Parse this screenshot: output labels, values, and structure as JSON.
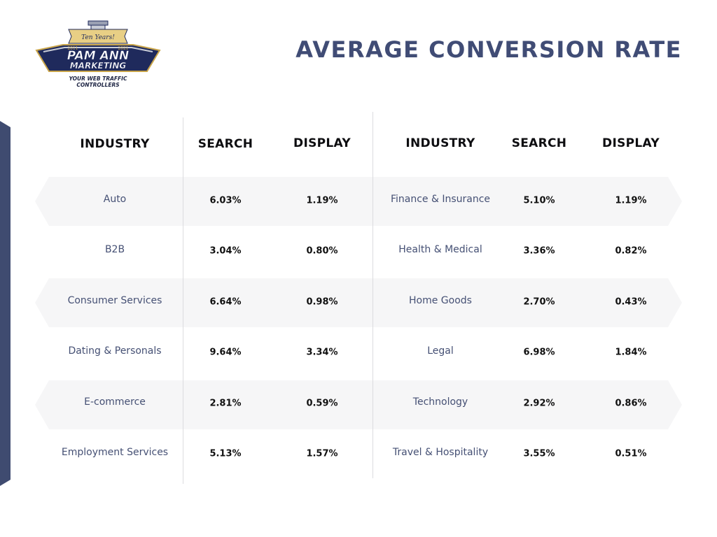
{
  "logo": {
    "banner_text": "Ten Years!",
    "year_start": "2011",
    "year_end": "2021",
    "line1": "PAM ANN",
    "line2": "MARKETING",
    "tagline_line1": "YOUR WEB TRAFFIC",
    "tagline_line2": "CONTROLLERS",
    "colors": {
      "navy": "#1f2a5c",
      "gold": "#c9a54a",
      "silver": "#c8ccd6"
    }
  },
  "title": "AVERAGE CONVERSION RATE",
  "colors": {
    "accent": "#3f4b70",
    "title": "#404c75",
    "industry_text": "#455074",
    "band": "#f6f6f7"
  },
  "headers": {
    "left": {
      "industry": "INDUSTRY",
      "search": "SEARCH",
      "display": "DISPLAY"
    },
    "right": {
      "industry": "INDUSTRY",
      "search": "SEARCH",
      "display": "DISPLAY"
    }
  },
  "rows": [
    {
      "left": {
        "industry": "Auto",
        "search": "6.03%",
        "display": "1.19%"
      },
      "right": {
        "industry": "Finance & Insurance",
        "search": "5.10%",
        "display": "1.19%"
      }
    },
    {
      "left": {
        "industry": "B2B",
        "search": "3.04%",
        "display": "0.80%"
      },
      "right": {
        "industry": "Health & Medical",
        "search": "3.36%",
        "display": "0.82%"
      }
    },
    {
      "left": {
        "industry": "Consumer Services",
        "search": "6.64%",
        "display": "0.98%"
      },
      "right": {
        "industry": "Home Goods",
        "search": "2.70%",
        "display": "0.43%"
      }
    },
    {
      "left": {
        "industry": "Dating & Personals",
        "search": "9.64%",
        "display": "3.34%"
      },
      "right": {
        "industry": "Legal",
        "search": "6.98%",
        "display": "1.84%"
      }
    },
    {
      "left": {
        "industry": "E-commerce",
        "search": "2.81%",
        "display": "0.59%"
      },
      "right": {
        "industry": "Technology",
        "search": "2.92%",
        "display": "0.86%"
      }
    },
    {
      "left": {
        "industry": "Employment Services",
        "search": "5.13%",
        "display": "1.57%"
      },
      "right": {
        "industry": "Travel & Hospitality",
        "search": "3.55%",
        "display": "0.51%"
      }
    }
  ]
}
